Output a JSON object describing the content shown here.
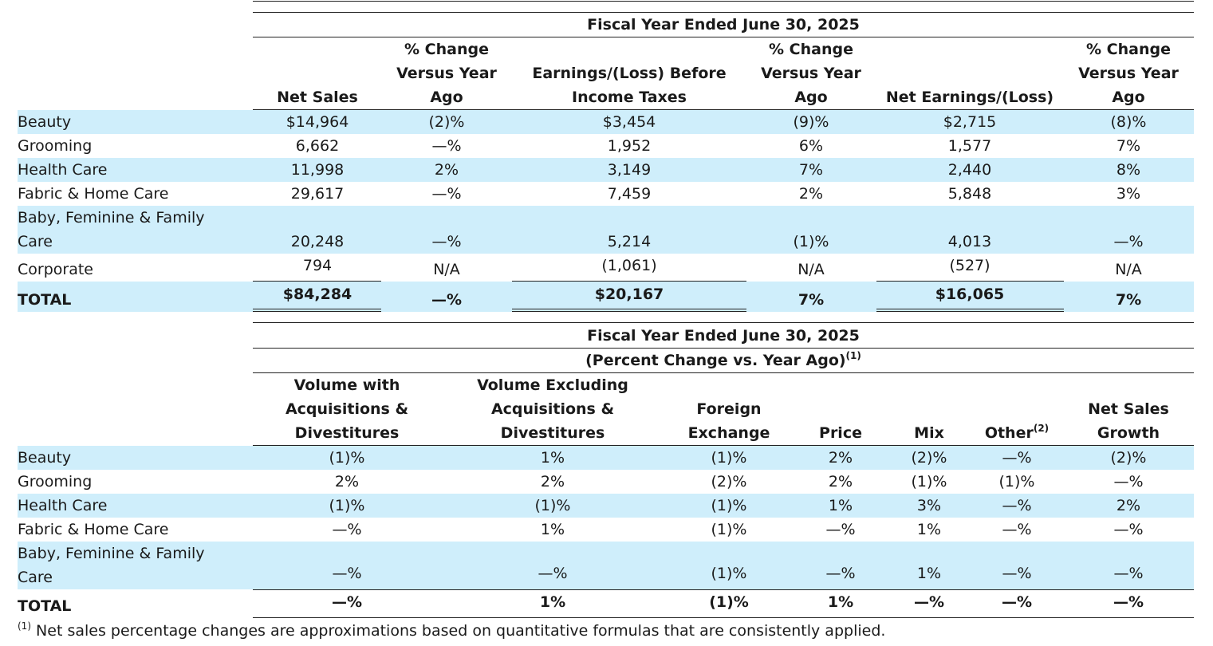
{
  "table1": {
    "super_header": "Fiscal Year Ended June 30, 2025",
    "columns": [
      {
        "l1": "",
        "l2": "",
        "l3": "Net Sales"
      },
      {
        "l1": "% Change",
        "l2": "Versus Year",
        "l3": "Ago"
      },
      {
        "l1": "",
        "l2": "Earnings/(Loss) Before",
        "l3": "Income Taxes"
      },
      {
        "l1": "% Change",
        "l2": "Versus Year",
        "l3": "Ago"
      },
      {
        "l1": "",
        "l2": "",
        "l3": "Net Earnings/(Loss)"
      },
      {
        "l1": "% Change",
        "l2": "Versus Year",
        "l3": "Ago"
      }
    ],
    "rows": [
      {
        "label": "Beauty",
        "cells": [
          "$14,964",
          "(2)%",
          "$3,454",
          "(9)%",
          "$2,715",
          "(8)%"
        ]
      },
      {
        "label": "Grooming",
        "cells": [
          "6,662",
          "—%",
          "1,952",
          "6%",
          "1,577",
          "7%"
        ]
      },
      {
        "label": "Health Care",
        "cells": [
          "11,998",
          "2%",
          "3,149",
          "7%",
          "2,440",
          "8%"
        ]
      },
      {
        "label": "Fabric & Home Care",
        "cells": [
          "29,617",
          "—%",
          "7,459",
          "2%",
          "5,848",
          "3%"
        ]
      },
      {
        "label1": "Baby, Feminine & Family",
        "label2": "Care",
        "cells": [
          "20,248",
          "—%",
          "5,214",
          "(1)%",
          "4,013",
          "—%"
        ]
      },
      {
        "label": "Corporate",
        "cells": [
          "794",
          "N/A",
          "(1,061)",
          "N/A",
          "(527)",
          "N/A"
        ]
      }
    ],
    "total": {
      "label": "TOTAL",
      "cells": [
        "$84,284",
        "—%",
        "$20,167",
        "7%",
        "$16,065",
        "7%"
      ]
    }
  },
  "table2": {
    "super_header1": "Fiscal Year Ended June 30, 2025",
    "super_header2": "(Percent Change vs. Year Ago)",
    "super_header2_note": "(1)",
    "columns": [
      {
        "l1": "Volume with",
        "l2": "Acquisitions &",
        "l3": "Divestitures"
      },
      {
        "l1": "Volume Excluding",
        "l2": "Acquisitions &",
        "l3": "Divestitures"
      },
      {
        "l1": "",
        "l2": "Foreign",
        "l3": "Exchange"
      },
      {
        "l1": "",
        "l2": "",
        "l3": "Price"
      },
      {
        "l1": "",
        "l2": "",
        "l3": "Mix"
      },
      {
        "l1": "",
        "l2": "",
        "l3": "Other",
        "note": "(2)"
      },
      {
        "l1": "",
        "l2": "Net Sales",
        "l3": "Growth"
      }
    ],
    "rows": [
      {
        "label": "Beauty",
        "cells": [
          "(1)%",
          "1%",
          "(1)%",
          "2%",
          "(2)%",
          "—%",
          "(2)%"
        ]
      },
      {
        "label": "Grooming",
        "cells": [
          "2%",
          "2%",
          "(2)%",
          "2%",
          "(1)%",
          "(1)%",
          "—%"
        ]
      },
      {
        "label": "Health Care",
        "cells": [
          "(1)%",
          "(1)%",
          "(1)%",
          "1%",
          "3%",
          "—%",
          "2%"
        ]
      },
      {
        "label": "Fabric & Home Care",
        "cells": [
          "—%",
          "1%",
          "(1)%",
          "—%",
          "1%",
          "—%",
          "—%"
        ]
      },
      {
        "label1": "Baby, Feminine & Family",
        "label2": "Care",
        "cells": [
          "—%",
          "—%",
          "(1)%",
          "—%",
          "1%",
          "—%",
          "—%"
        ]
      }
    ],
    "total": {
      "label": "TOTAL",
      "cells": [
        "—%",
        "1%",
        "(1)%",
        "1%",
        "—%",
        "—%",
        "—%"
      ]
    }
  },
  "footnote": {
    "marker": "(1)",
    "text": "Net sales percentage changes are approximations based on quantitative formulas that are consistently applied."
  }
}
